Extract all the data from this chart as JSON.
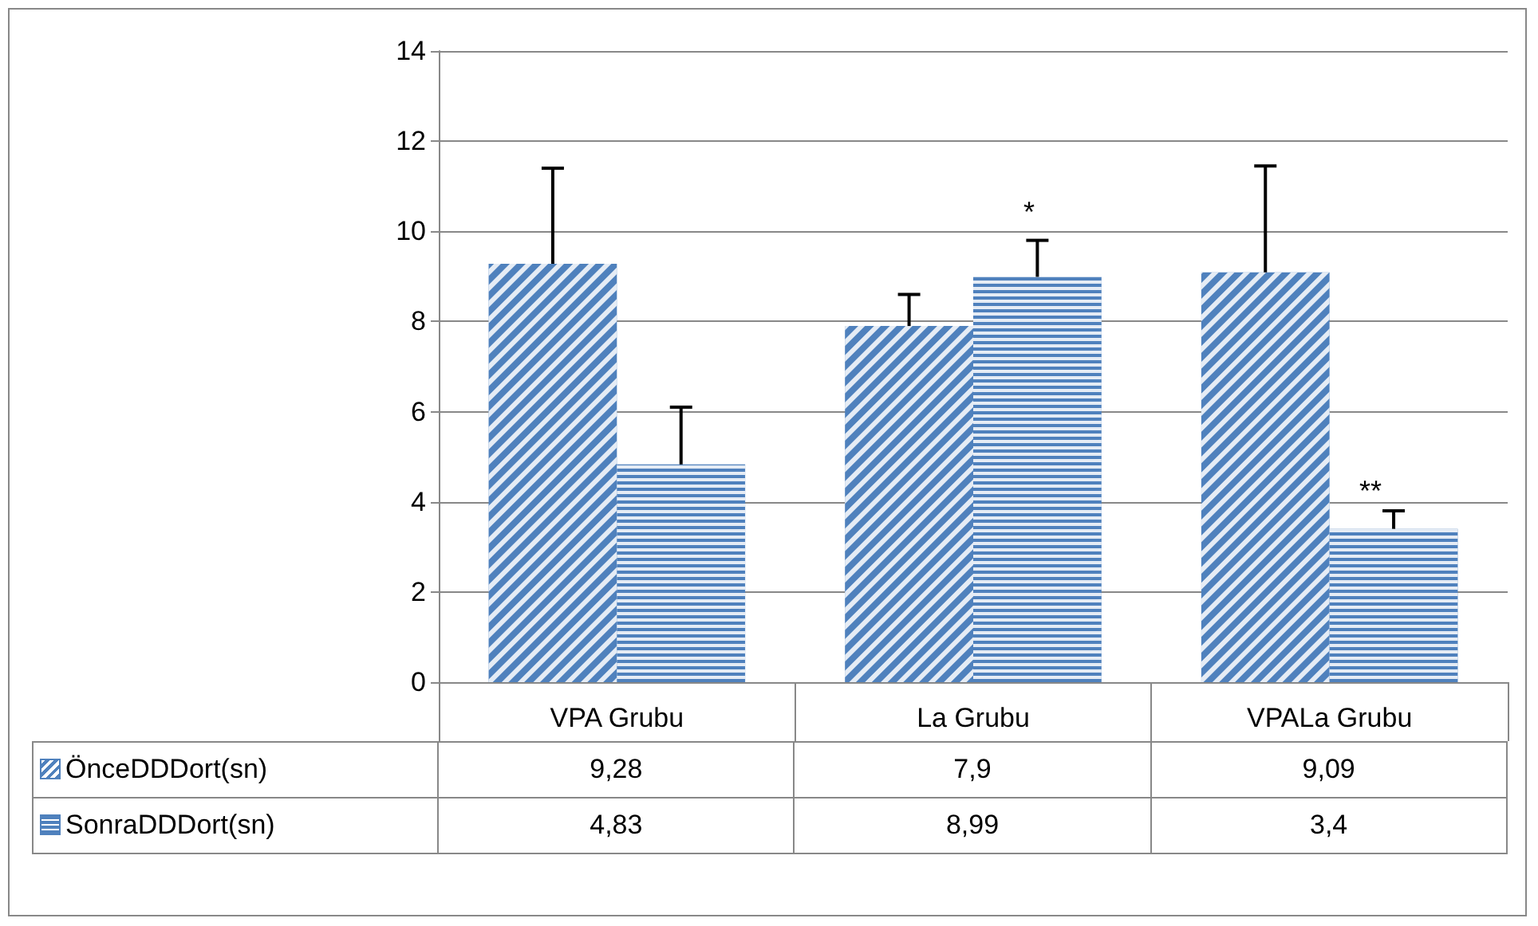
{
  "chart_data": {
    "type": "bar",
    "categories": [
      "VPA Grubu",
      "La Grubu",
      "VPALa Grubu"
    ],
    "series": [
      {
        "name": "ÖnceDDDort(sn)",
        "color": "#4f81bd",
        "values": [
          9.28,
          7.9,
          9.09
        ],
        "errors": [
          [
            9.28,
            11.4
          ],
          [
            7.9,
            8.6
          ],
          [
            9.09,
            11.45
          ]
        ],
        "value_labels": [
          "9,28",
          "7,9",
          "9,09"
        ]
      },
      {
        "name": "SonraDDDort(sn)",
        "color": "#4f81bd",
        "values": [
          4.83,
          8.99,
          3.4
        ],
        "errors": [
          [
            4.83,
            6.1
          ],
          [
            8.99,
            9.8
          ],
          [
            3.4,
            3.8
          ]
        ],
        "value_labels": [
          "4,83",
          "8,99",
          "3,4"
        ]
      }
    ],
    "annotations": [
      "*",
      "**"
    ],
    "ylim": [
      0,
      14
    ],
    "yticks": [
      0,
      2,
      4,
      6,
      8,
      10,
      12,
      14
    ],
    "grid": "y",
    "legend": "bottom"
  }
}
